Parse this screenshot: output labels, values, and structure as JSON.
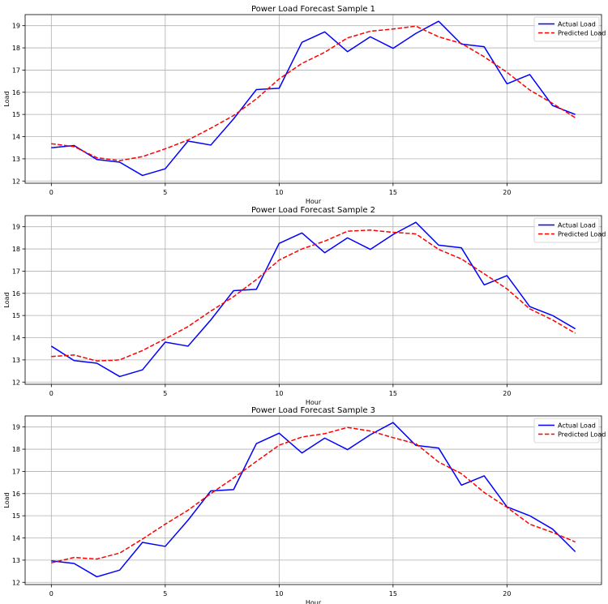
{
  "chart_data": [
    {
      "type": "line",
      "title": "Power Load Forecast Sample 1",
      "xlabel": "Hour",
      "ylabel": "Load",
      "xlim": [
        -1.15,
        24.15
      ],
      "ylim": [
        11.9,
        19.5
      ],
      "xticks": [
        0,
        5,
        10,
        15,
        20
      ],
      "yticks": [
        12,
        13,
        14,
        15,
        16,
        17,
        18,
        19
      ],
      "grid": true,
      "legend_position": "top-right",
      "x": [
        0,
        1,
        2,
        3,
        4,
        5,
        6,
        7,
        8,
        9,
        10,
        11,
        12,
        13,
        14,
        15,
        16,
        17,
        18,
        19,
        20,
        21,
        22,
        23
      ],
      "series": [
        {
          "name": "Actual Load",
          "color": "#0000ff",
          "style": "solid",
          "values": [
            13.5,
            13.6,
            12.97,
            12.85,
            12.25,
            12.55,
            13.8,
            13.62,
            14.8,
            16.12,
            16.18,
            18.25,
            18.72,
            17.83,
            18.5,
            17.98,
            18.65,
            19.2,
            18.17,
            18.05,
            16.38,
            16.8,
            15.4,
            15.0
          ]
        },
        {
          "name": "Predicted Load",
          "color": "#ff0000",
          "style": "dashed",
          "values": [
            13.68,
            13.55,
            13.05,
            12.92,
            13.1,
            13.45,
            13.85,
            14.38,
            14.95,
            15.7,
            16.6,
            17.3,
            17.8,
            18.45,
            18.75,
            18.85,
            18.98,
            18.5,
            18.2,
            17.6,
            16.9,
            16.1,
            15.5,
            14.85
          ]
        }
      ]
    },
    {
      "type": "line",
      "title": "Power Load Forecast Sample 2",
      "xlabel": "Hour",
      "ylabel": "Load",
      "xlim": [
        -1.15,
        24.15
      ],
      "ylim": [
        11.9,
        19.5
      ],
      "xticks": [
        0,
        5,
        10,
        15,
        20
      ],
      "yticks": [
        12,
        13,
        14,
        15,
        16,
        17,
        18,
        19
      ],
      "grid": true,
      "legend_position": "top-right",
      "x": [
        0,
        1,
        2,
        3,
        4,
        5,
        6,
        7,
        8,
        9,
        10,
        11,
        12,
        13,
        14,
        15,
        16,
        17,
        18,
        19,
        20,
        21,
        22,
        23
      ],
      "series": [
        {
          "name": "Actual Load",
          "color": "#0000ff",
          "style": "solid",
          "values": [
            13.62,
            12.97,
            12.85,
            12.25,
            12.55,
            13.8,
            13.62,
            14.8,
            16.12,
            16.18,
            18.25,
            18.72,
            17.83,
            18.5,
            17.98,
            18.65,
            19.2,
            18.17,
            18.05,
            16.38,
            16.8,
            15.4,
            15.0,
            14.4
          ]
        },
        {
          "name": "Predicted Load",
          "color": "#ff0000",
          "style": "dashed",
          "values": [
            13.15,
            13.22,
            12.95,
            13.0,
            13.42,
            13.95,
            14.5,
            15.2,
            15.85,
            16.62,
            17.5,
            18.0,
            18.35,
            18.8,
            18.85,
            18.75,
            18.68,
            17.98,
            17.55,
            16.88,
            16.2,
            15.3,
            14.8,
            14.2
          ]
        }
      ]
    },
    {
      "type": "line",
      "title": "Power Load Forecast Sample 3",
      "xlabel": "Hour",
      "ylabel": "Load",
      "xlim": [
        -1.15,
        24.15
      ],
      "ylim": [
        11.9,
        19.5
      ],
      "xticks": [
        0,
        5,
        10,
        15,
        20
      ],
      "yticks": [
        12,
        13,
        14,
        15,
        16,
        17,
        18,
        19
      ],
      "grid": true,
      "legend_position": "top-right",
      "x": [
        0,
        1,
        2,
        3,
        4,
        5,
        6,
        7,
        8,
        9,
        10,
        11,
        12,
        13,
        14,
        15,
        16,
        17,
        18,
        19,
        20,
        21,
        22,
        23
      ],
      "series": [
        {
          "name": "Actual Load",
          "color": "#0000ff",
          "style": "solid",
          "values": [
            12.97,
            12.85,
            12.25,
            12.55,
            13.8,
            13.62,
            14.8,
            16.12,
            16.18,
            18.25,
            18.72,
            17.83,
            18.5,
            17.98,
            18.65,
            19.2,
            18.17,
            18.05,
            16.38,
            16.8,
            15.4,
            15.0,
            14.4,
            13.38
          ]
        },
        {
          "name": "Predicted Load",
          "color": "#ff0000",
          "style": "dashed",
          "values": [
            12.88,
            13.12,
            13.05,
            13.32,
            13.95,
            14.62,
            15.25,
            16.0,
            16.7,
            17.45,
            18.18,
            18.55,
            18.7,
            18.98,
            18.82,
            18.52,
            18.25,
            17.42,
            16.9,
            16.05,
            15.38,
            14.62,
            14.25,
            13.82
          ]
        }
      ]
    }
  ]
}
